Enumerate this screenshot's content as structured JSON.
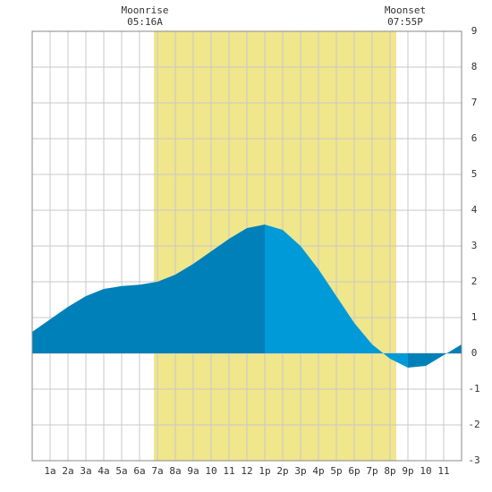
{
  "chart_data": {
    "type": "area",
    "moonrise_label": "Moonrise",
    "moonrise_time": "05:16A",
    "moonset_label": "Moonset",
    "moonset_time": "07:55P",
    "daylight": [
      6.8,
      20.35
    ],
    "daylight_color": "#f0e68c",
    "rising_color": "#0080b8",
    "falling_color": "#009ad8",
    "x": [
      0,
      1,
      2,
      3,
      4,
      5,
      6,
      7,
      8,
      9,
      10,
      11,
      12,
      13,
      14,
      15,
      16,
      17,
      18,
      19,
      20,
      21,
      22,
      23,
      24
    ],
    "values": [
      0.6,
      0.95,
      1.3,
      1.6,
      1.8,
      1.88,
      1.92,
      2.0,
      2.2,
      2.5,
      2.85,
      3.2,
      3.5,
      3.6,
      3.45,
      3.0,
      2.35,
      1.6,
      0.85,
      0.25,
      -0.15,
      -0.4,
      -0.35,
      -0.05,
      0.25
    ],
    "xlim": [
      0,
      24
    ],
    "ylim": [
      -3,
      9
    ],
    "xticks": [
      {
        "value": 1,
        "label": "1a"
      },
      {
        "value": 2,
        "label": "2a"
      },
      {
        "value": 3,
        "label": "3a"
      },
      {
        "value": 4,
        "label": "4a"
      },
      {
        "value": 5,
        "label": "5a"
      },
      {
        "value": 6,
        "label": "6a"
      },
      {
        "value": 7,
        "label": "7a"
      },
      {
        "value": 8,
        "label": "8a"
      },
      {
        "value": 9,
        "label": "9a"
      },
      {
        "value": 10,
        "label": "10"
      },
      {
        "value": 11,
        "label": "11"
      },
      {
        "value": 12,
        "label": "12"
      },
      {
        "value": 13,
        "label": "1p"
      },
      {
        "value": 14,
        "label": "2p"
      },
      {
        "value": 15,
        "label": "3p"
      },
      {
        "value": 16,
        "label": "4p"
      },
      {
        "value": 17,
        "label": "5p"
      },
      {
        "value": 18,
        "label": "6p"
      },
      {
        "value": 19,
        "label": "7p"
      },
      {
        "value": 20,
        "label": "8p"
      },
      {
        "value": 21,
        "label": "9p"
      },
      {
        "value": 22,
        "label": "10"
      },
      {
        "value": 23,
        "label": "11"
      }
    ],
    "yticks": [
      -3,
      -2,
      -1,
      0,
      1,
      2,
      3,
      4,
      5,
      6,
      7,
      8,
      9
    ],
    "grid": true
  }
}
